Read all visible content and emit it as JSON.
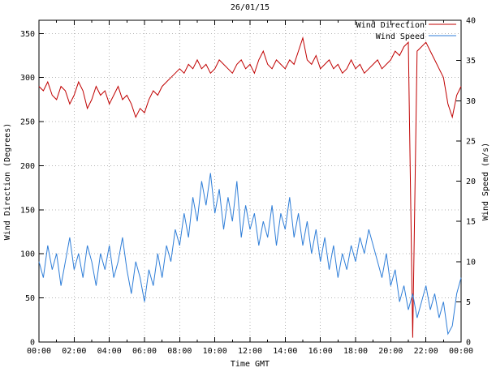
{
  "chart_data": {
    "type": "line",
    "title": "26/01/15",
    "xlabel": "Time GMT",
    "ylabel_left": "Wind Direction (Degrees)",
    "ylabel_right": "Wind Speed (m/s)",
    "xlim": [
      0,
      24
    ],
    "ylim_left": [
      0,
      365
    ],
    "ylim_right": [
      0,
      40
    ],
    "grid": true,
    "legend_position": "top-right",
    "x_tick_labels": [
      "00:00",
      "02:00",
      "04:00",
      "06:00",
      "08:00",
      "10:00",
      "12:00",
      "14:00",
      "16:00",
      "18:00",
      "20:00",
      "22:00",
      "00:00"
    ],
    "x_tick_values": [
      0,
      2,
      4,
      6,
      8,
      10,
      12,
      14,
      16,
      18,
      20,
      22,
      24
    ],
    "x_minor_tick_step": 1,
    "left_ticks": [
      0,
      50,
      100,
      150,
      200,
      250,
      300,
      350
    ],
    "right_ticks": [
      0,
      5,
      10,
      15,
      20,
      25,
      30,
      35,
      40
    ],
    "x": [
      0,
      0.25,
      0.5,
      0.75,
      1,
      1.25,
      1.5,
      1.75,
      2,
      2.25,
      2.5,
      2.75,
      3,
      3.25,
      3.5,
      3.75,
      4,
      4.25,
      4.5,
      4.75,
      5,
      5.25,
      5.5,
      5.75,
      6,
      6.25,
      6.5,
      6.75,
      7,
      7.25,
      7.5,
      7.75,
      8,
      8.25,
      8.5,
      8.75,
      9,
      9.25,
      9.5,
      9.75,
      10,
      10.25,
      10.5,
      10.75,
      11,
      11.25,
      11.5,
      11.75,
      12,
      12.25,
      12.5,
      12.75,
      13,
      13.25,
      13.5,
      13.75,
      14,
      14.25,
      14.5,
      14.75,
      15,
      15.25,
      15.5,
      15.75,
      16,
      16.25,
      16.5,
      16.75,
      17,
      17.25,
      17.5,
      17.75,
      18,
      18.25,
      18.5,
      18.75,
      19,
      19.25,
      19.5,
      19.75,
      20,
      20.25,
      20.5,
      20.75,
      21,
      21.25,
      21.5,
      21.75,
      22,
      22.25,
      22.5,
      22.75,
      23,
      23.25,
      23.5,
      23.75,
      24
    ],
    "series": [
      {
        "name": "Wind Direction",
        "axis": "left",
        "color": "#c00000",
        "values": [
          290,
          285,
          295,
          280,
          275,
          290,
          285,
          270,
          280,
          295,
          285,
          265,
          275,
          290,
          280,
          285,
          270,
          280,
          290,
          275,
          280,
          270,
          255,
          265,
          260,
          275,
          285,
          280,
          290,
          295,
          300,
          305,
          310,
          305,
          315,
          310,
          320,
          310,
          315,
          305,
          310,
          320,
          315,
          310,
          305,
          315,
          320,
          310,
          315,
          305,
          320,
          330,
          315,
          310,
          320,
          315,
          310,
          320,
          315,
          330,
          345,
          320,
          315,
          325,
          310,
          315,
          320,
          310,
          315,
          305,
          310,
          320,
          310,
          315,
          305,
          310,
          315,
          320,
          310,
          315,
          320,
          330,
          325,
          335,
          340,
          5,
          330,
          335,
          340,
          330,
          320,
          310,
          300,
          270,
          255,
          280,
          290
        ]
      },
      {
        "name": "Wind Speed",
        "axis": "right",
        "color": "#2f7ed8",
        "values": [
          10,
          8,
          12,
          9,
          11,
          7,
          10,
          13,
          9,
          11,
          8,
          12,
          10,
          7,
          11,
          9,
          12,
          8,
          10,
          13,
          9,
          6,
          10,
          8,
          5,
          9,
          7,
          11,
          8,
          12,
          10,
          14,
          12,
          16,
          13,
          18,
          15,
          20,
          17,
          21,
          16,
          19,
          14,
          18,
          15,
          20,
          13,
          17,
          14,
          16,
          12,
          15,
          13,
          17,
          12,
          16,
          14,
          18,
          13,
          16,
          12,
          15,
          11,
          14,
          10,
          13,
          9,
          12,
          8,
          11,
          9,
          12,
          10,
          13,
          11,
          14,
          12,
          10,
          8,
          11,
          7,
          9,
          5,
          7,
          4,
          6,
          3,
          5,
          7,
          4,
          6,
          3,
          5,
          1,
          2,
          6,
          8
        ]
      }
    ]
  },
  "legend": {
    "entries": [
      {
        "label": "Wind Direction",
        "color": "#c00000"
      },
      {
        "label": "Wind Speed",
        "color": "#2f7ed8"
      }
    ]
  },
  "colors": {
    "grid": "#b4b4b4",
    "axis": "#000000",
    "background": "#ffffff"
  }
}
